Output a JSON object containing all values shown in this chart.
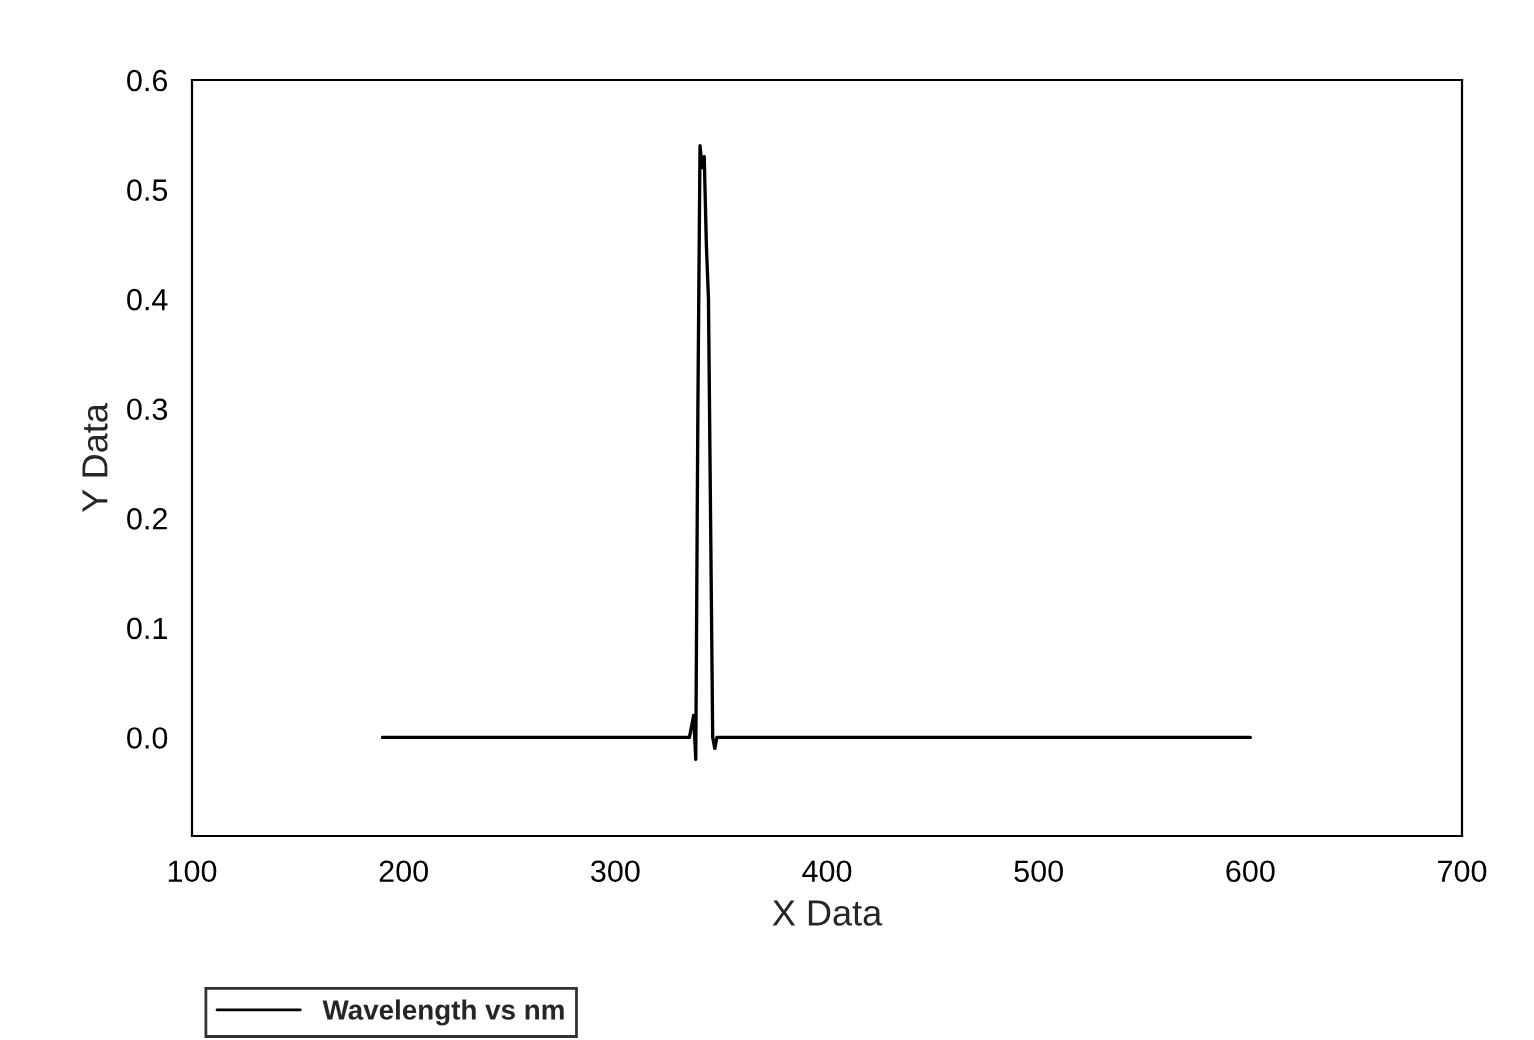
{
  "chart_data": {
    "type": "line",
    "xlabel": "X Data",
    "ylabel": "Y Data",
    "x": [
      190,
      300,
      335,
      337,
      338,
      339,
      340,
      341,
      342,
      343,
      344,
      345,
      346,
      347,
      348,
      400,
      500,
      600
    ],
    "series": [
      {
        "name": "Wavelength vs nm",
        "color": "#000000",
        "values": [
          0,
          0,
          0,
          0.02,
          -0.02,
          0.3,
          0.54,
          0.52,
          0.53,
          0.45,
          0.4,
          0.2,
          0.0,
          -0.01,
          0,
          0,
          0,
          0
        ]
      }
    ],
    "xlim": [
      100,
      700
    ],
    "xticks": [
      100,
      200,
      300,
      400,
      500,
      600,
      700
    ],
    "ylim": [
      -0.09,
      0.6
    ],
    "yticks": [
      {
        "value": 0.0,
        "label": "0.0"
      },
      0.1,
      0.2,
      0.3,
      0.4,
      0.5,
      0.6
    ],
    "grid": false,
    "legend": "bottom left",
    "marker": "none",
    "line_style": "solid"
  }
}
